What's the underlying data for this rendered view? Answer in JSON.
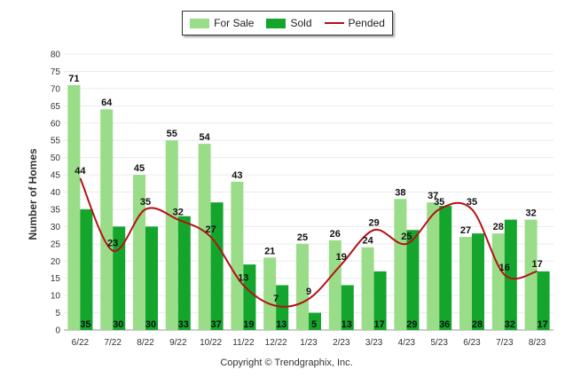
{
  "chart_data": {
    "type": "bar",
    "categories": [
      "6/22",
      "7/22",
      "8/22",
      "9/22",
      "10/22",
      "11/22",
      "12/22",
      "1/23",
      "2/23",
      "3/23",
      "4/23",
      "5/23",
      "6/23",
      "7/23",
      "8/23"
    ],
    "series": [
      {
        "name": "For Sale",
        "type": "bar",
        "color": "#99dd88",
        "values": [
          71,
          64,
          45,
          55,
          54,
          43,
          21,
          25,
          26,
          24,
          38,
          37,
          27,
          28,
          32
        ]
      },
      {
        "name": "Sold",
        "type": "bar",
        "color": "#14a52d",
        "values": [
          35,
          30,
          30,
          33,
          37,
          19,
          13,
          5,
          13,
          17,
          29,
          36,
          28,
          32,
          17
        ]
      },
      {
        "name": "Pended",
        "type": "line",
        "color": "#b31217",
        "values": [
          44,
          23,
          35,
          32,
          27,
          13,
          7,
          9,
          19,
          29,
          25,
          35,
          35,
          16,
          17
        ]
      }
    ],
    "title": "",
    "xlabel": "",
    "ylabel": "Number of Homes",
    "ylim": [
      0,
      80
    ],
    "yticks": [
      0,
      5,
      10,
      15,
      20,
      25,
      30,
      35,
      40,
      45,
      50,
      55,
      60,
      65,
      70,
      75,
      80
    ],
    "grid": true,
    "legend_position": "top-center"
  },
  "legend": {
    "for_sale": "For Sale",
    "sold": "Sold",
    "pended": "Pended"
  },
  "copyright": "Copyright © Trendgraphix, Inc."
}
